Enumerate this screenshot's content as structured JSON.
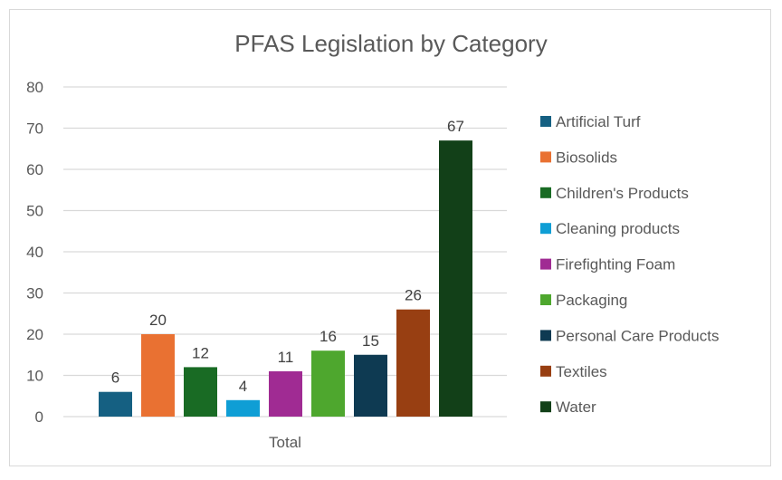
{
  "chart_data": {
    "type": "bar",
    "title": "PFAS Legislation by Category",
    "categories": [
      "Total"
    ],
    "series": [
      {
        "name": "Artificial Turf",
        "values": [
          6
        ],
        "color": "#156082"
      },
      {
        "name": "Biosolids",
        "values": [
          20
        ],
        "color": "#E97132"
      },
      {
        "name": "Children's Products",
        "values": [
          12
        ],
        "color": "#196B24"
      },
      {
        "name": "Cleaning products",
        "values": [
          4
        ],
        "color": "#0F9ED5"
      },
      {
        "name": "Firefighting Foam",
        "values": [
          11
        ],
        "color": "#A02B93"
      },
      {
        "name": "Packaging",
        "values": [
          16
        ],
        "color": "#4EA72E"
      },
      {
        "name": "Personal Care Products",
        "values": [
          15
        ],
        "color": "#0E3A52"
      },
      {
        "name": "Textiles",
        "values": [
          26
        ],
        "color": "#983F12"
      },
      {
        "name": "Water",
        "values": [
          67
        ],
        "color": "#124018"
      }
    ],
    "ylim": [
      0,
      80
    ],
    "yticks": [
      0,
      10,
      20,
      30,
      40,
      50,
      60,
      70,
      80
    ],
    "xlabel": "",
    "ylabel": "",
    "grid": true,
    "legend": "right",
    "data_labels": true
  }
}
